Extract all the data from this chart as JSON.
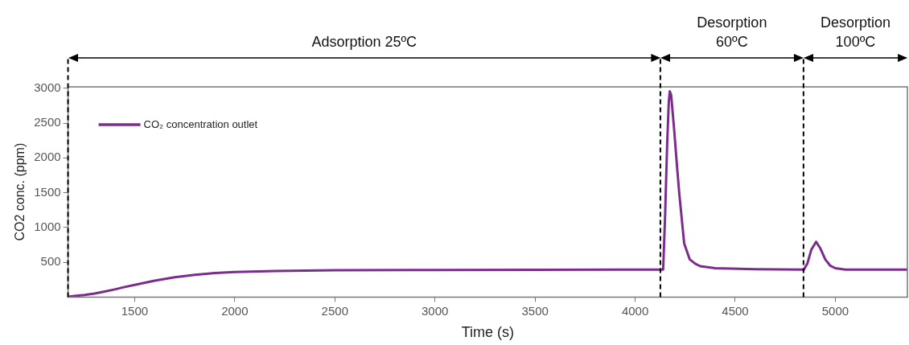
{
  "chart_data": {
    "type": "line",
    "xlabel": "Time (s)",
    "ylabel": "CO2 conc. (ppm)",
    "x": [
      1167,
      1200,
      1250,
      1300,
      1350,
      1400,
      1450,
      1500,
      1600,
      1700,
      1800,
      1900,
      2000,
      2200,
      2500,
      3000,
      3500,
      4000,
      4140,
      4150,
      4160,
      4168,
      4173,
      4180,
      4195,
      4210,
      4221,
      4245,
      4273,
      4300,
      4325,
      4400,
      4600,
      4843,
      4860,
      4880,
      4904,
      4925,
      4950,
      4975,
      5000,
      5050,
      5360
    ],
    "series": [
      {
        "name": "CO₂ concentration outlet",
        "color": "#7b2d8e",
        "values": [
          5,
          15,
          30,
          50,
          80,
          110,
          145,
          175,
          235,
          285,
          320,
          345,
          360,
          375,
          385,
          390,
          393,
          395,
          395,
          1200,
          2200,
          2800,
          2955,
          2900,
          2400,
          1850,
          1470,
          770,
          540,
          480,
          444,
          415,
          400,
          395,
          480,
          680,
          794,
          700,
          540,
          450,
          415,
          395,
          395
        ]
      }
    ],
    "xlim": [
      1167,
      5360
    ],
    "xticks": [
      1500,
      2000,
      2500,
      3000,
      3500,
      4000,
      4500,
      5000
    ],
    "ylim": [
      0,
      3020
    ],
    "yticks": [
      500,
      1000,
      1500,
      2000,
      2500,
      3000
    ],
    "grid": false,
    "legend": "top left",
    "marker": "none",
    "line_style": "solid",
    "ref_lines": [
      {
        "axis": "x",
        "value": 1167,
        "label": null,
        "color": "#000000",
        "line_style": "dashed"
      },
      {
        "axis": "x",
        "value": 4126,
        "label": null,
        "color": "#000000",
        "line_style": "dashed"
      },
      {
        "axis": "x",
        "value": 4841,
        "label": null,
        "color": "#000000",
        "line_style": "dashed"
      }
    ],
    "annotations": [
      "Adsorption 25ºC",
      "Desorption\n60ºC",
      "Desorption\n100ºC"
    ]
  }
}
